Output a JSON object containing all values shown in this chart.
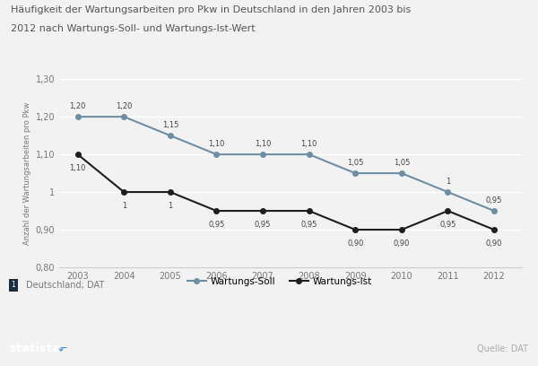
{
  "title_line1": "Häufigkeit der Wartungsarbeiten pro Pkw in Deutschland in den Jahren 2003 bis",
  "title_line2": "2012 nach Wartungs-Soll- und Wartungs-Ist-Wert",
  "years": [
    2003,
    2004,
    2005,
    2006,
    2007,
    2008,
    2009,
    2010,
    2011,
    2012
  ],
  "soll": [
    1.2,
    1.2,
    1.15,
    1.1,
    1.1,
    1.1,
    1.05,
    1.05,
    1.0,
    0.95
  ],
  "ist": [
    1.1,
    1.0,
    1.0,
    0.95,
    0.95,
    0.95,
    0.9,
    0.9,
    0.95,
    0.9
  ],
  "soll_labels": [
    "1,20",
    "1,20",
    "1,15",
    "1,10",
    "1,10",
    "1,10",
    "1,05",
    "1,05",
    "1",
    "0,95"
  ],
  "ist_labels": [
    "1,10",
    "1",
    "1",
    "0,95",
    "0,95",
    "0,95",
    "0,90",
    "0,90",
    "0,95",
    "0,90"
  ],
  "soll_color": "#6e8fa3",
  "ist_color": "#1e1e1e",
  "ylim": [
    0.8,
    1.3
  ],
  "yticks": [
    0.8,
    0.9,
    1.0,
    1.1,
    1.2,
    1.3
  ],
  "ytick_labels": [
    "0,80",
    "0,90",
    "1",
    "1,10",
    "1,20",
    "1,30"
  ],
  "ylabel": "Anzahl der Wartungsarbeiten pro Pkw",
  "bg_color": "#f2f2f2",
  "plot_bg_color": "#f2f2f2",
  "legend_soll": "Wartungs-Soll",
  "legend_ist": "Wartungs-Ist",
  "footnote": "Deutschland; DAT",
  "source": "Quelle: DAT",
  "bar_color": "#162d45",
  "bar_text_color": "#ffffff",
  "footnote_icon_color": "#1e2d3d",
  "footnote_text_color": "#777777",
  "tick_color": "#777777",
  "title_color": "#555555"
}
